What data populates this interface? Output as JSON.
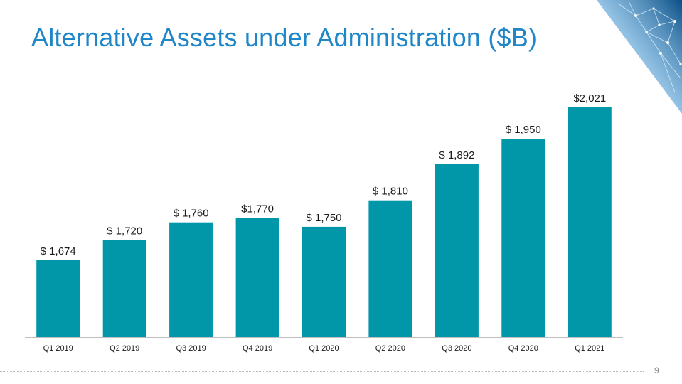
{
  "slide": {
    "title": "Alternative Assets under Administration ($B)",
    "page_number": "9"
  },
  "colors": {
    "title": "#1f86c8",
    "bar": "#0297a8",
    "axis": "#bfbfbf",
    "label": "#1a1a1a"
  },
  "chart_data": {
    "type": "bar",
    "title": "",
    "xlabel": "",
    "ylabel": "",
    "categories": [
      "Q1 2019",
      "Q2 2019",
      "Q3 2019",
      "Q4 2019",
      "Q1 2020",
      "Q2 2020",
      "Q3 2020",
      "Q4 2020",
      "Q1 2021"
    ],
    "values": [
      1674,
      1720,
      1760,
      1770,
      1750,
      1810,
      1892,
      1950,
      2021
    ],
    "data_labels": [
      "$ 1,674",
      "$ 1,720",
      "$ 1,760",
      "$1,770",
      "$ 1,750",
      "$ 1,810",
      "$ 1,892",
      "$ 1,950",
      "$2,021"
    ],
    "grid": false,
    "legend": "none"
  }
}
